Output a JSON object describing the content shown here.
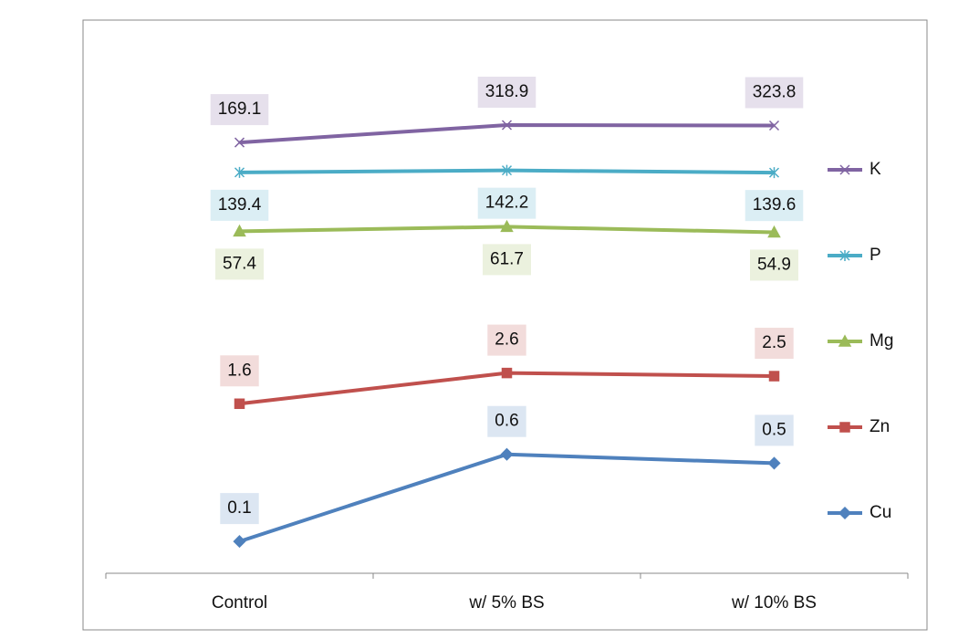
{
  "chart_data": {
    "type": "line",
    "stacked": true,
    "log_scale": true,
    "ylim": [
      0.05,
      600
    ],
    "categories": [
      "Control",
      "w/ 5% BS",
      "w/ 10% BS"
    ],
    "series": [
      {
        "name": "K",
        "color": "#8064a2",
        "marker": "x",
        "values": [
          169.1,
          318.9,
          323.8
        ]
      },
      {
        "name": "P",
        "color": "#4bacc6",
        "marker": "star",
        "values": [
          139.4,
          142.2,
          139.6
        ]
      },
      {
        "name": "Mg",
        "color": "#9bbb59",
        "marker": "triangle",
        "values": [
          57.4,
          61.7,
          54.9
        ]
      },
      {
        "name": "Zn",
        "color": "#c0504d",
        "marker": "square",
        "values": [
          1.6,
          2.6,
          2.5
        ]
      },
      {
        "name": "Cu",
        "color": "#4f81bd",
        "marker": "diamond",
        "values": [
          0.1,
          0.6,
          0.5
        ]
      }
    ]
  }
}
